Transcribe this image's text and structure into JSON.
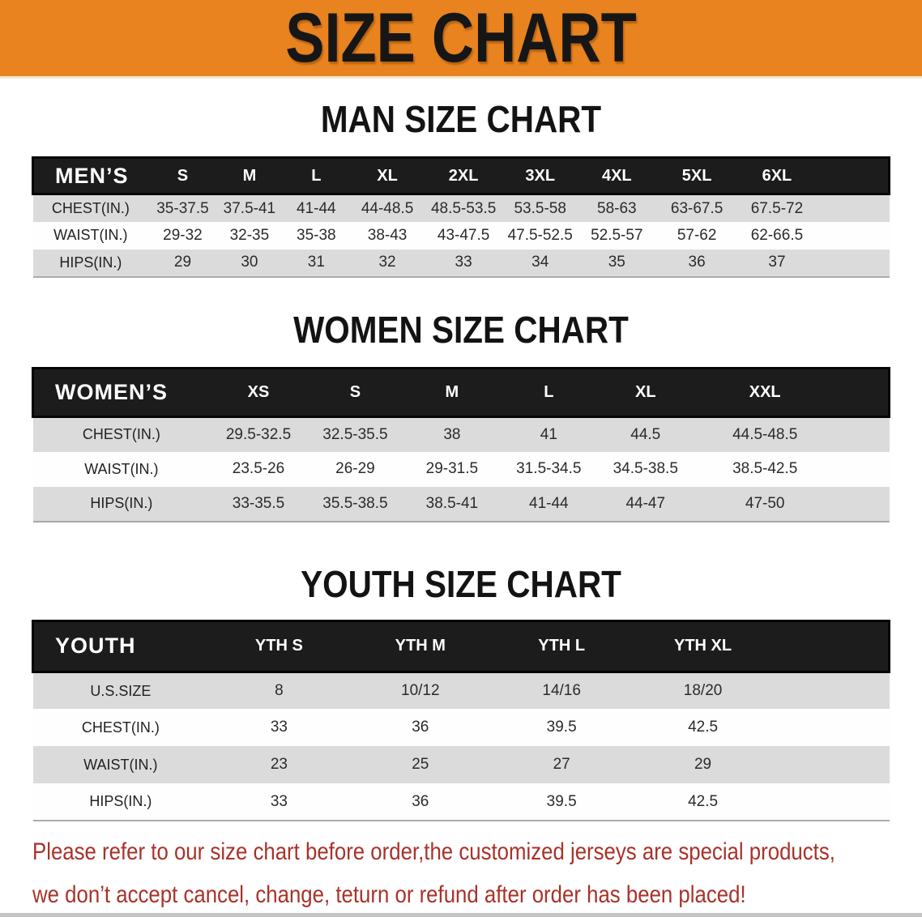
{
  "banner": {
    "title": "SIZE CHART",
    "bg_color": "#E8831F"
  },
  "sections": [
    {
      "id": "men",
      "heading": "MAN SIZE CHART",
      "table": {
        "header": [
          "MEN’S",
          "S",
          "M",
          "L",
          "XL",
          "2XL",
          "3XL",
          "4XL",
          "5XL",
          "6XL"
        ],
        "rows": [
          [
            "CHEST(IN.)",
            "35-37.5",
            "37.5-41",
            "41-44",
            "44-48.5",
            "48.5-53.5",
            "53.5-58",
            "58-63",
            "63-67.5",
            "67.5-72"
          ],
          [
            "WAIST(IN.)",
            "29-32",
            "32-35",
            "35-38",
            "38-43",
            "43-47.5",
            "47.5-52.5",
            "52.5-57",
            "57-62",
            "62-66.5"
          ],
          [
            "HIPS(IN.)",
            "29",
            "30",
            "31",
            "32",
            "33",
            "34",
            "35",
            "36",
            "37"
          ]
        ]
      }
    },
    {
      "id": "women",
      "heading": "WOMEN SIZE CHART",
      "table": {
        "header": [
          "WOMEN’S",
          "XS",
          "S",
          "M",
          "L",
          "XL",
          "XXL"
        ],
        "rows": [
          [
            "CHEST(IN.)",
            "29.5-32.5",
            "32.5-35.5",
            "38",
            "41",
            "44.5",
            "44.5-48.5"
          ],
          [
            "WAIST(IN.)",
            "23.5-26",
            "26-29",
            "29-31.5",
            "31.5-34.5",
            "34.5-38.5",
            "38.5-42.5"
          ],
          [
            "HIPS(IN.)",
            "33-35.5",
            "35.5-38.5",
            "38.5-41",
            "41-44",
            "44-47",
            "47-50"
          ]
        ]
      }
    },
    {
      "id": "youth",
      "heading": "YOUTH SIZE CHART",
      "table": {
        "header": [
          "YOUTH",
          "YTH S",
          "YTH M",
          "YTH L",
          "YTH XL"
        ],
        "rows": [
          [
            "U.S.SIZE",
            "8",
            "10/12",
            "14/16",
            "18/20"
          ],
          [
            "CHEST(IN.)",
            "33",
            "36",
            "39.5",
            "42.5"
          ],
          [
            "WAIST(IN.)",
            "23",
            "25",
            "27",
            "29"
          ],
          [
            "HIPS(IN.)",
            "33",
            "36",
            "39.5",
            "42.5"
          ]
        ]
      }
    }
  ],
  "footer": {
    "lines": [
      "Please refer to our size chart before order,the customized jerseys are special products,",
      "we don’t accept cancel, change, teturn or refund after order has been placed!"
    ],
    "text_color": "#A8322A"
  }
}
